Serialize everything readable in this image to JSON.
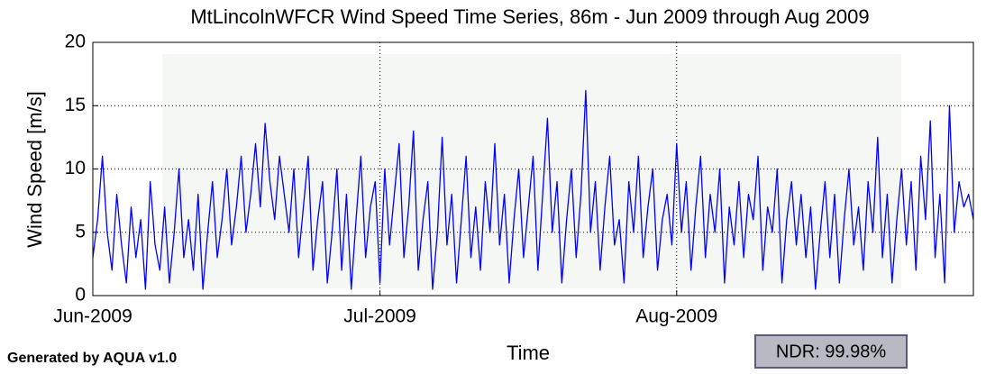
{
  "chart_data": {
    "type": "line",
    "title": "MtLincolnWFCR Wind Speed Time Series, 86m - Jun 2009 through Aug 2009",
    "ylabel": "Wind Speed [m/s]",
    "xlabel": "Time",
    "annotations": [
      "Generated by AQUA v1.0",
      "NDR: 99.98%"
    ],
    "xlim": [
      0,
      92
    ],
    "xticks": [
      {
        "value": 0,
        "label": "Jun-2009"
      },
      {
        "value": 30,
        "label": "Jul-2009"
      },
      {
        "value": 61,
        "label": "Aug-2009"
      }
    ],
    "ylim": [
      0,
      20
    ],
    "yticks": [
      0,
      5,
      10,
      15,
      20
    ],
    "grid": true,
    "x": [
      0,
      0.5,
      1,
      1.5,
      2,
      2.5,
      3,
      3.5,
      4,
      4.5,
      5,
      5.5,
      6,
      6.5,
      7,
      7.5,
      8,
      8.5,
      9,
      9.5,
      10,
      10.5,
      11,
      11.5,
      12,
      12.5,
      13,
      13.5,
      14,
      14.5,
      15,
      15.5,
      16,
      16.5,
      17,
      17.5,
      18,
      18.5,
      19,
      19.5,
      20,
      20.5,
      21,
      21.5,
      22,
      22.5,
      23,
      23.5,
      24,
      24.5,
      25,
      25.5,
      26,
      26.5,
      27,
      27.5,
      28,
      28.5,
      29,
      29.5,
      30,
      30.5,
      31,
      31.5,
      32,
      32.5,
      33,
      33.5,
      34,
      34.5,
      35,
      35.5,
      36,
      36.5,
      37,
      37.5,
      38,
      38.5,
      39,
      39.5,
      40,
      40.5,
      41,
      41.5,
      42,
      42.5,
      43,
      43.5,
      44,
      44.5,
      45,
      45.5,
      46,
      46.5,
      47,
      47.5,
      48,
      48.5,
      49,
      49.5,
      50,
      50.5,
      51,
      51.5,
      52,
      52.5,
      53,
      53.5,
      54,
      54.5,
      55,
      55.5,
      56,
      56.5,
      57,
      57.5,
      58,
      58.5,
      59,
      59.5,
      60,
      60.5,
      61,
      61.5,
      62,
      62.5,
      63,
      63.5,
      64,
      64.5,
      65,
      65.5,
      66,
      66.5,
      67,
      67.5,
      68,
      68.5,
      69,
      69.5,
      70,
      70.5,
      71,
      71.5,
      72,
      72.5,
      73,
      73.5,
      74,
      74.5,
      75,
      75.5,
      76,
      76.5,
      77,
      77.5,
      78,
      78.5,
      79,
      79.5,
      80,
      80.5,
      81,
      81.5,
      82,
      82.5,
      83,
      83.5,
      84,
      84.5,
      85,
      85.5,
      86,
      86.5,
      87,
      87.5,
      88,
      88.5,
      89,
      89.5,
      90,
      90.5,
      91,
      91.5,
      92
    ],
    "series": [
      {
        "color": "#0000ff",
        "values": [
          3,
          6,
          11,
          5,
          2,
          8,
          4,
          1,
          7,
          3,
          6,
          0.5,
          9,
          4,
          2,
          7,
          1,
          5,
          10,
          3,
          6,
          2,
          8,
          0.5,
          5,
          9,
          3,
          6,
          10,
          4,
          7,
          11,
          5,
          8,
          12,
          7,
          13.6,
          9,
          6,
          11,
          8,
          5,
          10,
          3,
          7,
          11,
          2,
          6,
          9,
          1,
          5,
          10,
          2,
          8,
          0.5,
          6,
          11,
          3,
          7,
          9,
          1,
          10,
          4,
          8,
          12,
          3,
          7,
          13,
          2,
          6,
          9,
          0.5,
          5,
          12.5,
          4,
          8,
          1,
          6,
          11,
          3,
          7,
          2,
          9,
          5,
          12,
          4,
          8,
          1,
          6,
          10,
          3,
          7,
          11,
          2,
          8,
          14,
          5,
          9,
          1,
          6,
          10,
          3,
          8,
          16.2,
          5,
          9,
          2,
          7,
          11,
          4,
          6,
          1,
          9,
          5,
          11,
          3,
          7,
          10,
          2,
          6,
          8,
          4,
          12,
          5,
          9,
          2,
          7,
          11,
          3,
          8,
          5,
          10,
          1,
          7,
          4,
          9,
          3,
          8,
          6,
          11,
          2,
          7,
          5,
          10,
          1,
          6,
          9,
          4,
          8,
          3,
          7,
          0.5,
          5,
          9,
          3,
          8,
          1,
          6,
          10,
          4,
          7,
          2,
          9,
          5,
          12.5,
          3,
          8,
          1,
          6,
          10,
          4,
          9,
          2,
          11,
          6,
          13.8,
          3,
          8,
          1,
          15,
          5,
          9,
          7,
          8,
          6
        ]
      }
    ]
  }
}
